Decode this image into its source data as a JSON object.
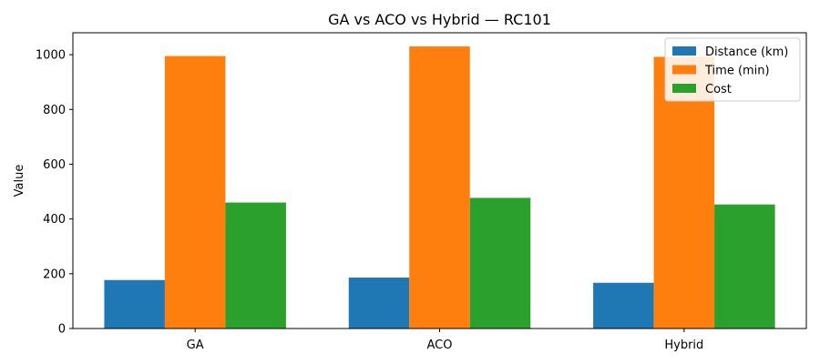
{
  "chart_data": {
    "type": "bar",
    "title": "GA vs ACO vs Hybrid — RC101",
    "xlabel": "",
    "ylabel": "Value",
    "categories": [
      "GA",
      "ACO",
      "Hybrid"
    ],
    "series": [
      {
        "name": "Distance (km)",
        "color": "#1f77b4",
        "values": [
          177,
          186,
          167
        ]
      },
      {
        "name": "Time (min)",
        "color": "#ff7f0e",
        "values": [
          995,
          1030,
          992
        ]
      },
      {
        "name": "Cost",
        "color": "#2ca02c",
        "values": [
          460,
          477,
          453
        ]
      }
    ],
    "ylim": [
      0,
      1080
    ],
    "yticks": [
      0,
      200,
      400,
      600,
      800,
      1000
    ],
    "legend": "top-right",
    "grid": false
  }
}
